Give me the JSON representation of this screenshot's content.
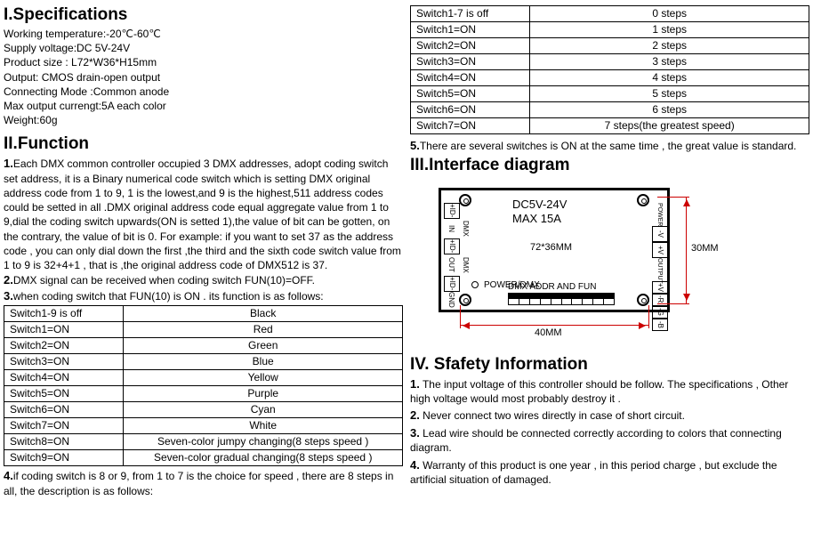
{
  "specs": {
    "heading": "I.Specifications",
    "lines": [
      "Working temperature:-20℃-60℃",
      "Supply voltage:DC 5V-24V",
      "Product size : L72*W36*H15mm",
      "Output: CMOS drain-open output",
      "Connecting Mode :Common anode",
      "Max output currengt:5A each color",
      "Weight:60g"
    ]
  },
  "func": {
    "heading": "II.Function",
    "p1_num": "1.",
    "p1": "Each DMX common controller occupied 3 DMX addresses, adopt coding switch set address, it is a Binary numerical code switch which is setting DMX original address code from 1 to 9, 1 is the lowest,and 9 is the highest,511 address codes could be setted in all .DMX original address code equal aggregate value from 1 to 9,dial the coding switch upwards(ON is setted 1),the value of bit can be gotten, on the contrary, the value of bit is 0. For example: if you want to set 37 as the address code , you can only dial down the first ,the third and the sixth code switch value from 1 to 9 is 32+4+1 , that is ,the original address code of DMX512 is 37.",
    "p2_num": "2.",
    "p2": "DMX signal can be received when coding switch FUN(10)=OFF.",
    "p3_num": "3.",
    "p3": "when coding switch that FUN(10) is ON . its function is as follows:",
    "color_table": [
      [
        "Switch1-9 is off",
        "Black"
      ],
      [
        "Switch1=ON",
        "Red"
      ],
      [
        "Switch2=ON",
        "Green"
      ],
      [
        "Switch3=ON",
        "Blue"
      ],
      [
        "Switch4=ON",
        "Yellow"
      ],
      [
        "Switch5=ON",
        "Purple"
      ],
      [
        "Switch6=ON",
        "Cyan"
      ],
      [
        "Switch7=ON",
        "White"
      ],
      [
        "Switch8=ON",
        "Seven-color jumpy changing(8 steps speed )"
      ],
      [
        "Switch9=ON",
        "Seven-color gradual changing(8 steps speed )"
      ]
    ],
    "p4_num": "4.",
    "p4": "if coding switch is 8 or 9, from 1 to 7 is the choice for speed , there are 8 steps in all, the description is as follows:"
  },
  "speed_table": [
    [
      "Switch1-7 is off",
      "0 steps"
    ],
    [
      "Switch1=ON",
      "1 steps"
    ],
    [
      "Switch2=ON",
      "2 steps"
    ],
    [
      "Switch3=ON",
      "3 steps"
    ],
    [
      "Switch4=ON",
      "4 steps"
    ],
    [
      "Switch5=ON",
      "5 steps"
    ],
    [
      "Switch6=ON",
      "6 steps"
    ],
    [
      "Switch7=ON",
      "7 steps(the greatest speed)"
    ]
  ],
  "p5_num": "5.",
  "p5": "There are several switches is ON at the same time , the great value is standard.",
  "iface": {
    "heading": "III.Interface diagram",
    "voltage": "DC5V-24V",
    "current": "MAX 15A",
    "size": "72*36MM",
    "pwr": "POWER/DMX",
    "addr": "DMX ADDR AND FUN",
    "dim_w": "40MM",
    "dim_h": "30MM",
    "left_terms": [
      "+ID-",
      "DMX IN",
      "+ID-",
      "DMX OUT",
      "+ID-",
      "GND"
    ],
    "right_label_top": "POWER",
    "right_label_bot": "OUTPUT",
    "right_terms": [
      "-V",
      "+V",
      "+V",
      "-R",
      "-G",
      "-B"
    ]
  },
  "safety": {
    "heading": "IV. Sfafety Information",
    "items": [
      {
        "num": "1.",
        "txt": " The input voltage of this controller should be follow. The specifications , Other high voltage would most probably destroy it ."
      },
      {
        "num": "2.",
        "txt": " Never connect two wires directly in case of short circuit."
      },
      {
        "num": "3.",
        "txt": " Lead wire should be connected correctly according to colors that connecting diagram."
      },
      {
        "num": "4.",
        "txt": " Warranty of this product is one year , in this period charge , but exclude the artificial situation of damaged."
      }
    ]
  }
}
